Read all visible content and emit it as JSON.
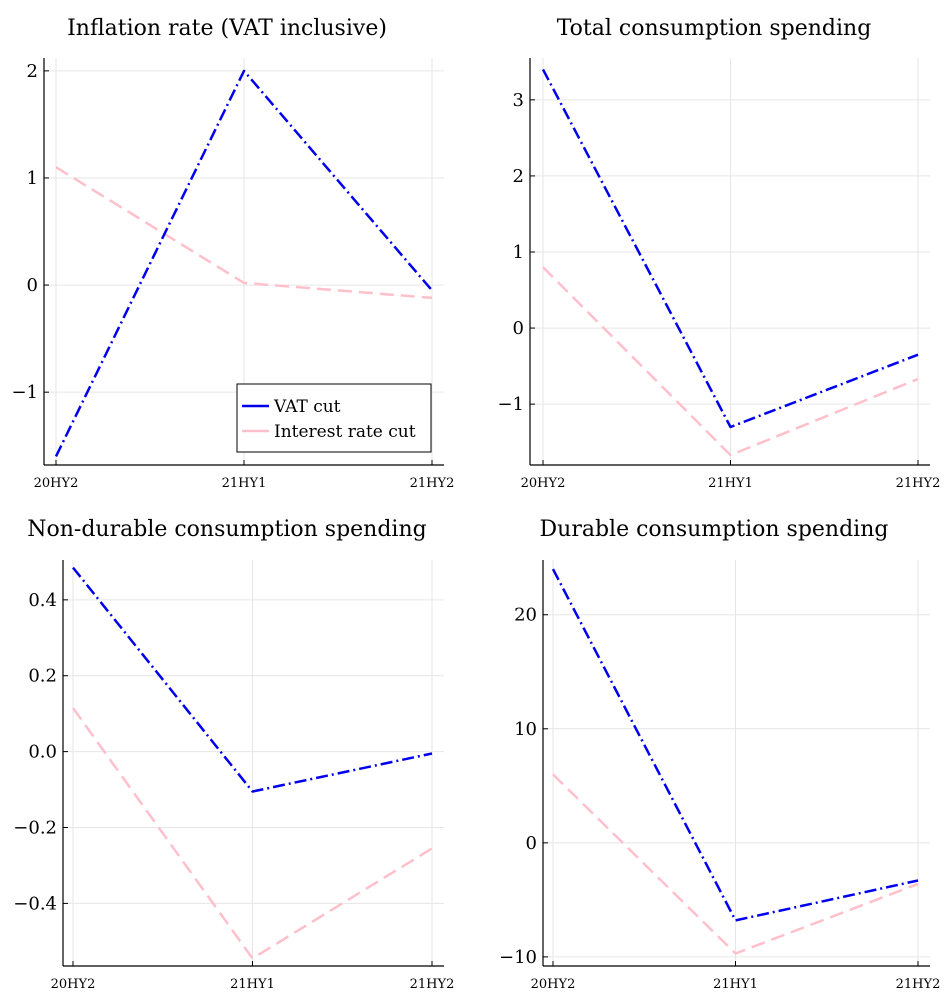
{
  "chart_data": [
    {
      "type": "line",
      "title": "Inflation rate (VAT inclusive)",
      "categories": [
        "20HY2",
        "21HY1",
        "21HY2"
      ],
      "yticks": [
        -1,
        0,
        1,
        2
      ],
      "ylim": [
        -1.68,
        2.12
      ],
      "series": [
        {
          "name": "VAT cut",
          "values": [
            -1.6,
            2.0,
            -0.05
          ],
          "color": "#0000ee",
          "style": "dashdot"
        },
        {
          "name": "Interest rate cut",
          "values": [
            1.1,
            0.02,
            -0.12
          ],
          "color": "#ffc0cb",
          "style": "dash"
        }
      ],
      "legend": "bottom-right",
      "grid": true
    },
    {
      "type": "line",
      "title": "Total consumption spending",
      "categories": [
        "20HY2",
        "21HY1",
        "21HY2"
      ],
      "yticks": [
        -1,
        0,
        1,
        2,
        3
      ],
      "ylim": [
        -1.8,
        3.55
      ],
      "series": [
        {
          "name": "VAT cut",
          "values": [
            3.4,
            -1.3,
            -0.35
          ],
          "color": "#0000ee",
          "style": "dashdot"
        },
        {
          "name": "Interest rate cut",
          "values": [
            0.8,
            -1.67,
            -0.67
          ],
          "color": "#ffc0cb",
          "style": "dash"
        }
      ],
      "grid": true
    },
    {
      "type": "line",
      "title": "Non-durable consumption spending",
      "categories": [
        "20HY2",
        "21HY1",
        "21HY2"
      ],
      "yticks": [
        -0.4,
        -0.2,
        0.0,
        0.2,
        0.4
      ],
      "yticklabels": [
        "−0.4",
        "−0.2",
        "0.0",
        "0.2",
        "0.4"
      ],
      "ylim": [
        -0.565,
        0.505
      ],
      "series": [
        {
          "name": "VAT cut",
          "values": [
            0.485,
            -0.105,
            -0.005
          ],
          "color": "#0000ee",
          "style": "dashdot"
        },
        {
          "name": "Interest rate cut",
          "values": [
            0.115,
            -0.545,
            -0.255
          ],
          "color": "#ffc0cb",
          "style": "dash"
        }
      ],
      "grid": true
    },
    {
      "type": "line",
      "title": "Durable consumption spending",
      "categories": [
        "20HY2",
        "21HY1",
        "21HY2"
      ],
      "yticks": [
        -10,
        0,
        10,
        20
      ],
      "yticklabels": [
        "−10",
        "0",
        "10",
        "20"
      ],
      "ylim": [
        -10.8,
        24.8
      ],
      "series": [
        {
          "name": "VAT cut",
          "values": [
            24.0,
            -6.8,
            -3.3
          ],
          "color": "#0000ee",
          "style": "dashdot"
        },
        {
          "name": "Interest rate cut",
          "values": [
            6.0,
            -9.7,
            -3.6
          ],
          "color": "#ffc0cb",
          "style": "dash"
        }
      ],
      "grid": true
    }
  ]
}
